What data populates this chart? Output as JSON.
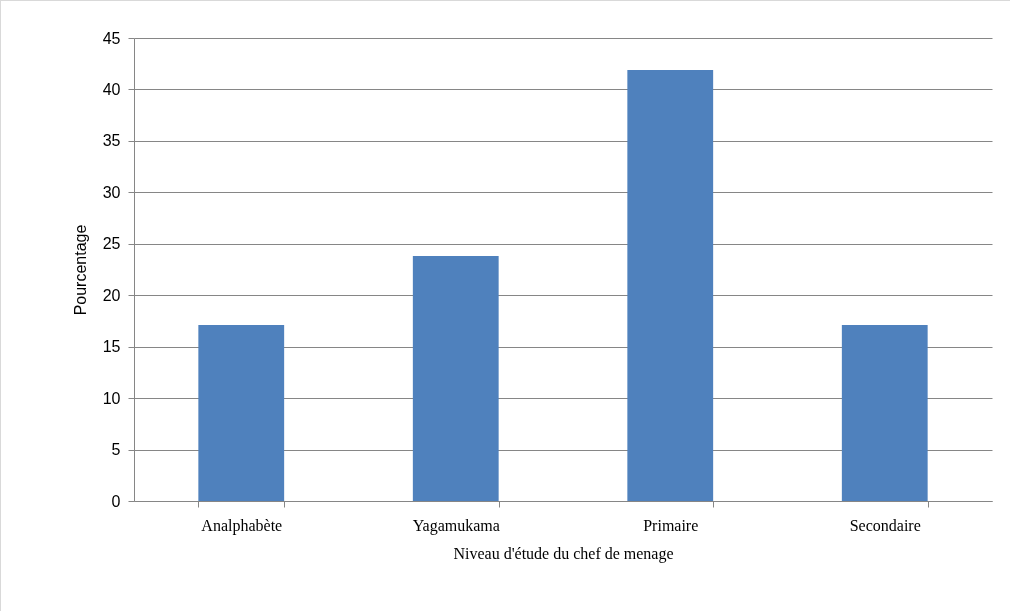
{
  "chart_data": {
    "type": "bar",
    "xlabel": "Niveau d'étude du chef de menage",
    "ylabel": "Pourcentage",
    "categories": [
      "Analphabète",
      "Yagamukama",
      "Primaire",
      "Secondaire"
    ],
    "values": [
      17.1,
      23.8,
      41.9,
      17.1
    ],
    "color": "#4f81bd",
    "ylim": [
      0,
      45
    ],
    "yticks": [
      0,
      5,
      10,
      15,
      20,
      25,
      30,
      35,
      40,
      45
    ],
    "grid": "y"
  }
}
